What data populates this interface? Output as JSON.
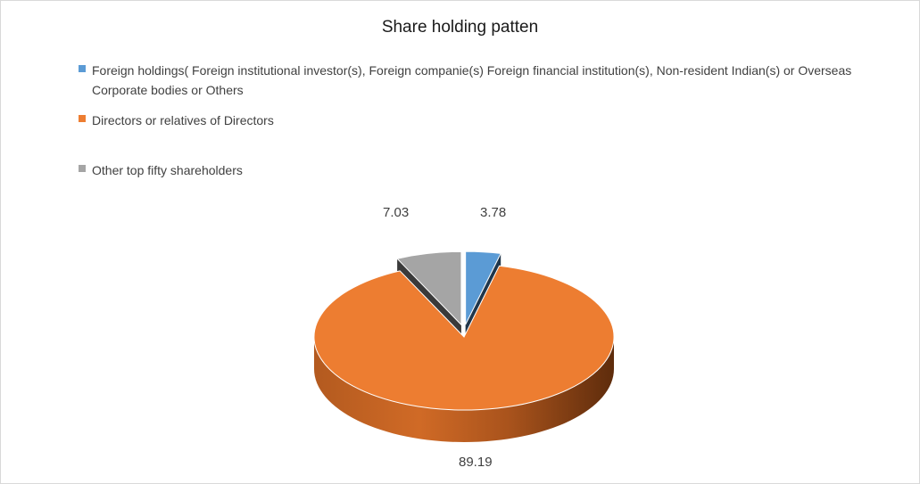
{
  "chart_data": {
    "type": "pie",
    "title": "Share holding patten",
    "legend_position": "top-left",
    "slices": [
      {
        "name": "Foreign holdings( Foreign institutional investor(s), Foreign companie(s) Foreign financial institution(s),  Non-resident Indian(s) or Overseas Corporate bodies or Others",
        "value": 3.78,
        "label": "3.78",
        "color": "#5b9bd5"
      },
      {
        "name": "Directors or relatives of Directors",
        "value": 89.19,
        "label": "89.19",
        "color": "#ed7d31"
      },
      {
        "name": "Other top fifty shareholders",
        "value": 7.03,
        "label": "7.03",
        "color": "#a5a5a5"
      }
    ]
  }
}
